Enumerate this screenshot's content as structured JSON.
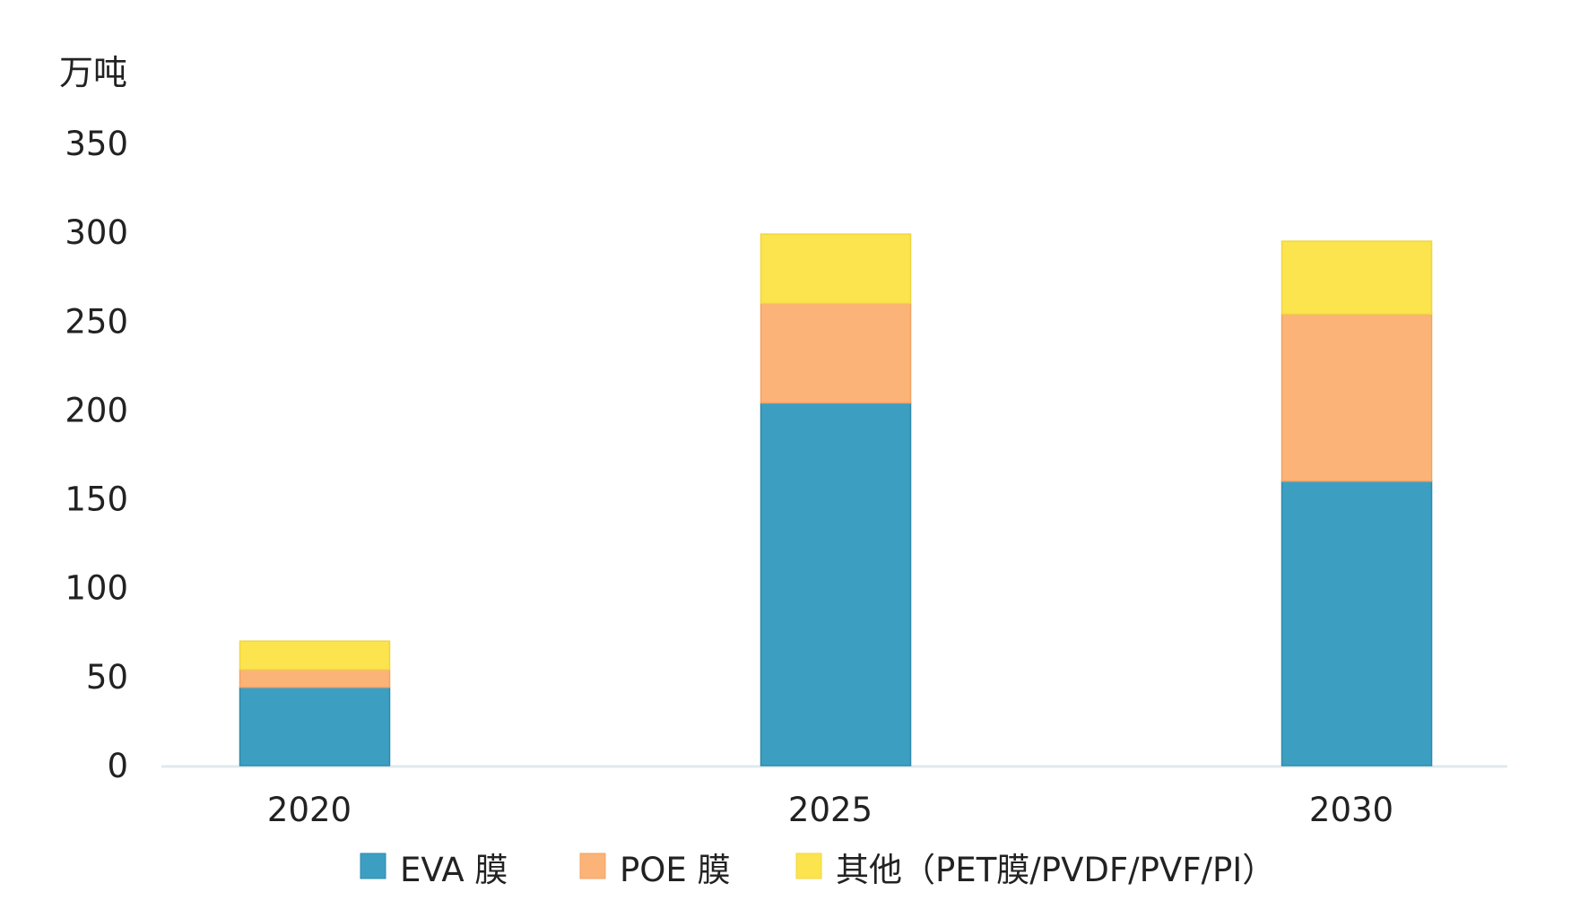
{
  "chart_data": {
    "type": "bar",
    "stacked": true,
    "title": "",
    "unit_label": "万吨",
    "xlabel": "",
    "ylabel": "万吨",
    "categories": [
      "2020",
      "2025",
      "2030"
    ],
    "series": [
      {
        "name": "EVA 膜",
        "color": "#3C9FC2",
        "values": [
          44,
          204,
          160
        ]
      },
      {
        "name": "POE 膜",
        "color": "#FBB377",
        "values": [
          10,
          56,
          94
        ]
      },
      {
        "name": "其他（PET膜/PVDF/PVF/PI）",
        "color": "#FBE44E",
        "values": [
          16,
          39,
          41
        ]
      }
    ],
    "ylim": [
      0,
      350
    ],
    "yticks": [
      0,
      50,
      100,
      150,
      200,
      250,
      300,
      350
    ],
    "grid": false,
    "legend_position": "bottom"
  }
}
